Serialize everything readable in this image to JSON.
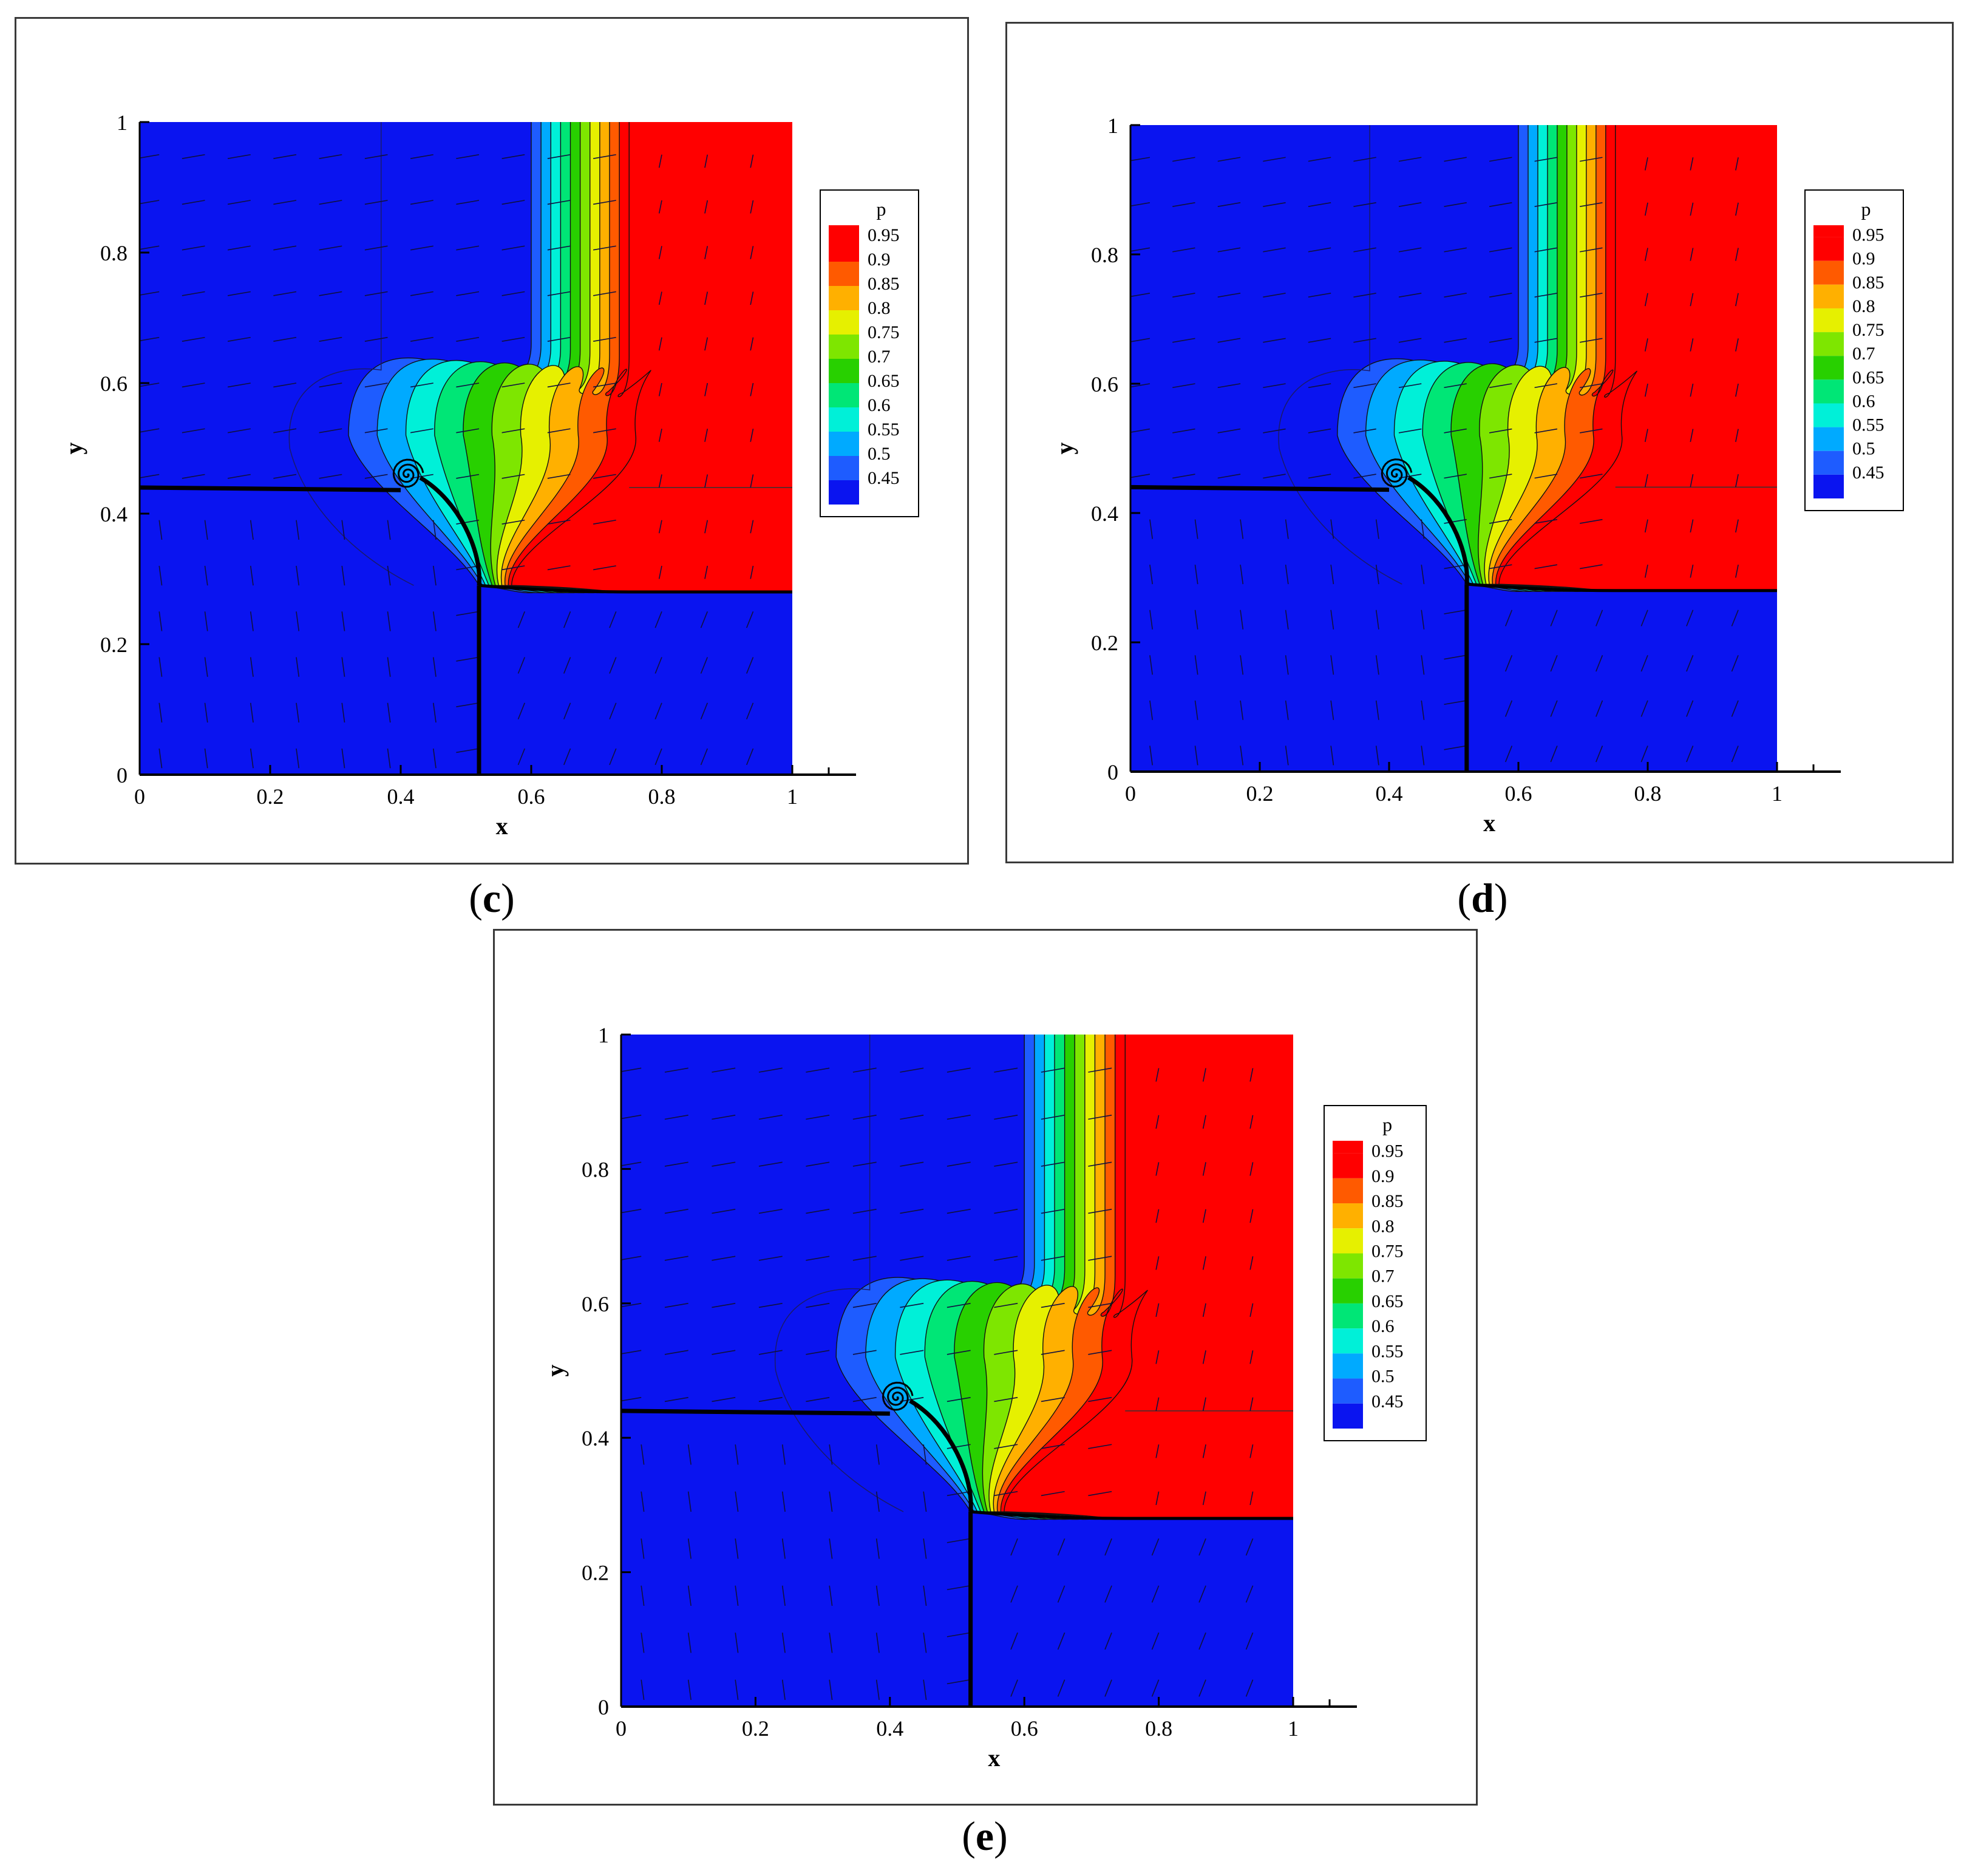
{
  "figure": {
    "panels": [
      {
        "id": "c",
        "caption_open": "(",
        "caption_letter": "c",
        "caption_close": ")"
      },
      {
        "id": "d",
        "caption_open": "(",
        "caption_letter": "d",
        "caption_close": ")"
      },
      {
        "id": "e",
        "caption_open": "(",
        "caption_letter": "e",
        "caption_close": ")"
      }
    ]
  },
  "chart_data": [
    {
      "panel": "c",
      "type": "heatmap",
      "title": "",
      "xlabel": "x",
      "ylabel": "y",
      "xlim": [
        0,
        1
      ],
      "ylim": [
        0,
        1
      ],
      "xticks": [
        "0",
        "0.2",
        "0.4",
        "0.6",
        "0.8",
        "1"
      ],
      "yticks": [
        "0",
        "0.2",
        "0.4",
        "0.6",
        "0.8",
        "1"
      ],
      "legend": {
        "title": "p",
        "placement": "right",
        "levels": [
          "0.95",
          "0.9",
          "0.85",
          "0.8",
          "0.75",
          "0.7",
          "0.65",
          "0.6",
          "0.55",
          "0.5",
          "0.45"
        ],
        "colors": [
          "#ff0000",
          "#ff5a00",
          "#ffb000",
          "#e6f000",
          "#7ee600",
          "#28d000",
          "#00e676",
          "#00f0d8",
          "#00aaff",
          "#1e5cff",
          "#0a14f0"
        ],
        "top_color": "#ff0000"
      },
      "features": {
        "shock_y": 0.44,
        "shock_x": 0.52,
        "contact_y_right": 0.28,
        "vortex": [
          0.41,
          0.46
        ],
        "triple_point": [
          0.52,
          0.29
        ],
        "red_region_x": 0.75,
        "low_pressure": 0.45,
        "high_pressure": 1.0
      }
    },
    {
      "panel": "d",
      "type": "heatmap",
      "title": "",
      "xlabel": "x",
      "ylabel": "y",
      "xlim": [
        0,
        1
      ],
      "ylim": [
        0,
        1
      ],
      "xticks": [
        "0",
        "0.2",
        "0.4",
        "0.6",
        "0.8",
        "1"
      ],
      "yticks": [
        "0",
        "0.2",
        "0.4",
        "0.6",
        "0.8",
        "1"
      ],
      "legend": {
        "title": "p",
        "placement": "right",
        "levels": [
          "0.95",
          "0.9",
          "0.85",
          "0.8",
          "0.75",
          "0.7",
          "0.65",
          "0.6",
          "0.55",
          "0.5",
          "0.45"
        ],
        "colors": [
          "#ff0000",
          "#ff5a00",
          "#ffb000",
          "#e6f000",
          "#7ee600",
          "#28d000",
          "#00e676",
          "#00f0d8",
          "#00aaff",
          "#1e5cff",
          "#0a14f0"
        ],
        "top_color": "#ff0000"
      },
      "features": {
        "shock_y": 0.44,
        "shock_x": 0.52,
        "contact_y_right": 0.28,
        "vortex": [
          0.41,
          0.46
        ],
        "triple_point": [
          0.52,
          0.29
        ],
        "red_region_x": 0.75,
        "low_pressure": 0.45,
        "high_pressure": 1.0
      }
    },
    {
      "panel": "e",
      "type": "heatmap",
      "title": "",
      "xlabel": "x",
      "ylabel": "y",
      "xlim": [
        0,
        1
      ],
      "ylim": [
        0,
        1
      ],
      "xticks": [
        "0",
        "0.2",
        "0.4",
        "0.6",
        "0.8",
        "1"
      ],
      "yticks": [
        "0",
        "0.2",
        "0.4",
        "0.6",
        "0.8",
        "1"
      ],
      "legend": {
        "title": "p",
        "placement": "right",
        "levels": [
          "0.95",
          "0.9",
          "0.85",
          "0.8",
          "0.75",
          "0.7",
          "0.65",
          "0.6",
          "0.55",
          "0.5",
          "0.45"
        ],
        "colors": [
          "#ff0000",
          "#ff5a00",
          "#ffb000",
          "#e6f000",
          "#7ee600",
          "#28d000",
          "#00e676",
          "#00f0d8",
          "#00aaff",
          "#1e5cff",
          "#0a14f0"
        ],
        "top_color": "#ff0000"
      },
      "features": {
        "shock_y": 0.44,
        "shock_x": 0.52,
        "contact_y_right": 0.28,
        "vortex": [
          0.41,
          0.46
        ],
        "triple_point": [
          0.52,
          0.29
        ],
        "red_region_x": 0.75,
        "low_pressure": 0.45,
        "high_pressure": 1.0
      }
    }
  ]
}
